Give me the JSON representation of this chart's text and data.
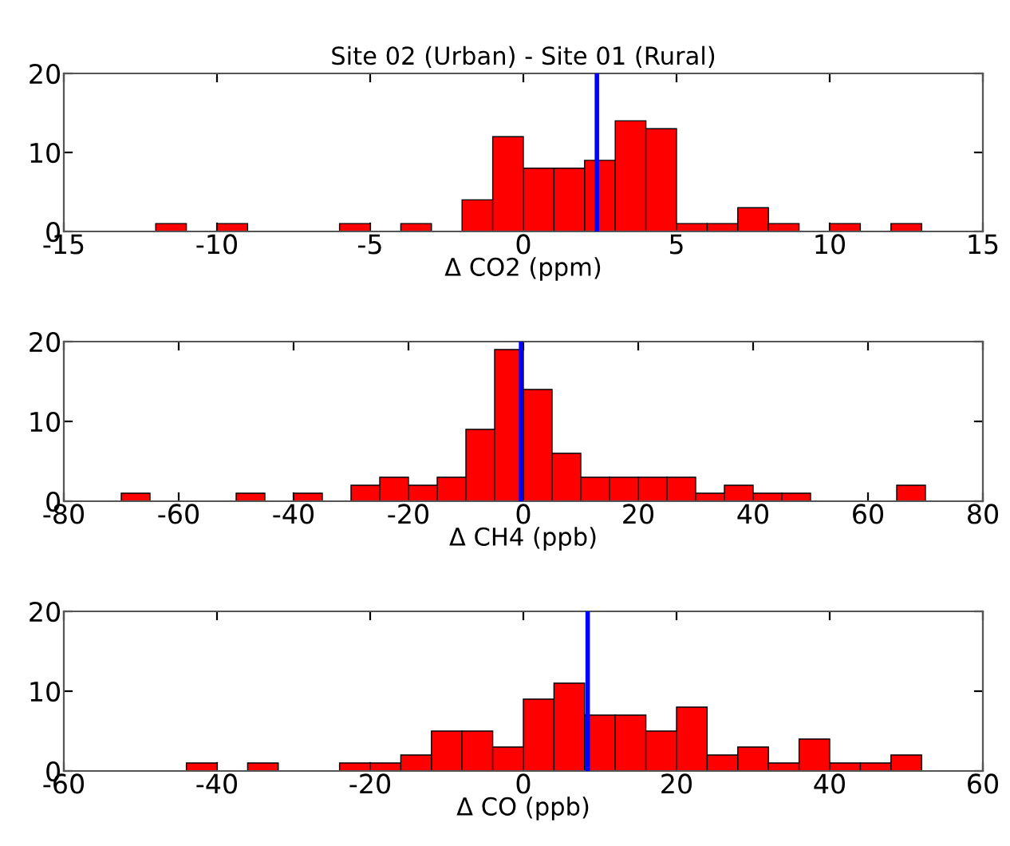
{
  "chart_data": [
    {
      "type": "histogram",
      "title": "Site 02 (Urban) - Site 01 (Rural)",
      "xlabel": "Δ CO2 (ppm)",
      "color": "#ff0000",
      "bins": [
        -12,
        -11,
        -10,
        -9,
        -8,
        -7,
        -6,
        -5,
        -4,
        -3,
        -2,
        -1,
        0,
        1,
        2,
        3,
        4,
        5,
        6,
        7,
        8,
        9,
        10,
        11,
        12,
        13
      ],
      "values": [
        1,
        0,
        1,
        0,
        0,
        0,
        1,
        0,
        1,
        0,
        4,
        12,
        8,
        8,
        9,
        14,
        13,
        1,
        1,
        3,
        1,
        0,
        1,
        0,
        1
      ],
      "xlim": [
        -15,
        15
      ],
      "xticks": [
        -15,
        -10,
        -5,
        0,
        5,
        10,
        15
      ],
      "ylim": [
        0,
        20
      ],
      "yticks": [
        0,
        10,
        20
      ],
      "ref_lines": [
        {
          "axis": "x",
          "value": 2.4,
          "color": "#0000ff"
        }
      ]
    },
    {
      "type": "histogram",
      "xlabel": "Δ CH4 (ppb)",
      "color": "#ff0000",
      "bins": [
        -70,
        -65,
        -60,
        -55,
        -50,
        -45,
        -40,
        -35,
        -30,
        -25,
        -20,
        -15,
        -10,
        -5,
        0,
        5,
        10,
        15,
        20,
        25,
        30,
        35,
        40,
        45,
        50,
        55,
        60,
        65,
        70
      ],
      "values": [
        1,
        0,
        0,
        0,
        1,
        0,
        1,
        0,
        2,
        3,
        2,
        3,
        9,
        19,
        14,
        6,
        3,
        3,
        3,
        3,
        1,
        2,
        1,
        1,
        0,
        0,
        0,
        2
      ],
      "xlim": [
        -80,
        80
      ],
      "xticks": [
        -80,
        -60,
        -40,
        -20,
        0,
        20,
        40,
        60,
        80
      ],
      "ylim": [
        0,
        20
      ],
      "yticks": [
        0,
        10,
        20
      ],
      "ref_lines": [
        {
          "axis": "x",
          "value": -0.4,
          "color": "#0000ff"
        }
      ]
    },
    {
      "type": "histogram",
      "xlabel": "Δ CO (ppb)",
      "color": "#ff0000",
      "bins": [
        -44,
        -40,
        -36,
        -32,
        -28,
        -24,
        -20,
        -16,
        -12,
        -8,
        -4,
        0,
        4,
        8,
        12,
        16,
        20,
        24,
        28,
        32,
        36,
        40,
        44,
        48,
        52
      ],
      "values": [
        1,
        0,
        1,
        0,
        0,
        1,
        1,
        2,
        5,
        5,
        3,
        9,
        11,
        7,
        7,
        5,
        8,
        2,
        3,
        1,
        4,
        1,
        1,
        2
      ],
      "xlim": [
        -60,
        60
      ],
      "xticks": [
        -60,
        -40,
        -20,
        0,
        20,
        40,
        60
      ],
      "ylim": [
        0,
        20
      ],
      "yticks": [
        0,
        10,
        20
      ],
      "ref_lines": [
        {
          "axis": "x",
          "value": 8.4,
          "color": "#0000ff"
        }
      ]
    }
  ]
}
